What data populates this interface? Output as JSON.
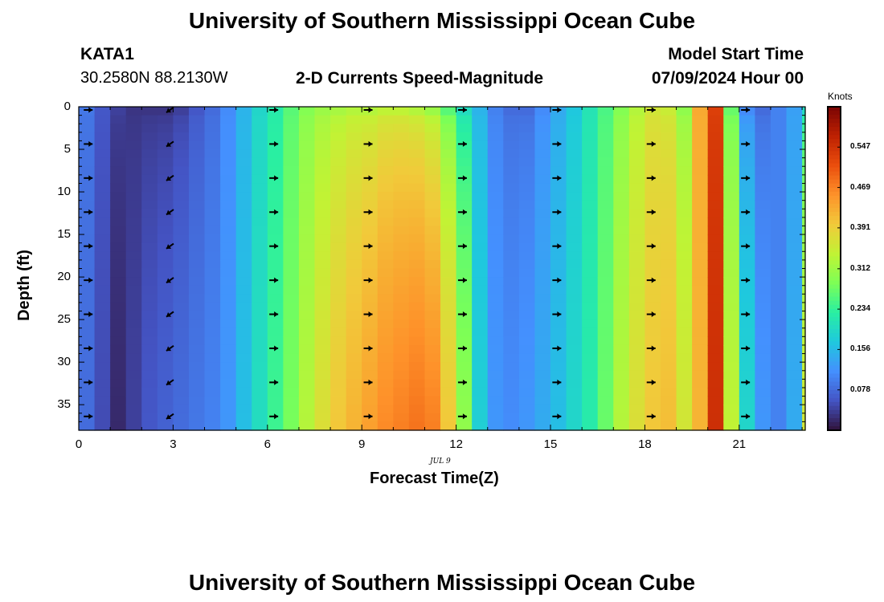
{
  "header": {
    "title": "University of Southern Mississippi Ocean Cube",
    "station_id": "KATA1",
    "station_coords": "30.2580N  88.2130W",
    "chart_title": "2-D Currents Speed-Magnitude",
    "model_label": "Model Start Time",
    "model_time": "07/09/2024 Hour 00"
  },
  "footer": {
    "title": "University of Southern Mississippi Ocean Cube"
  },
  "chart_data": {
    "type": "heatmap",
    "title": "2-D Currents Speed-Magnitude",
    "xlabel": "Forecast Time(Z)",
    "ylabel": "Depth (ft)",
    "date_label": "JUL 9",
    "xlim": [
      0,
      23.1
    ],
    "ylim": [
      0,
      38
    ],
    "x_ticks": [
      "0",
      "3",
      "6",
      "9",
      "12",
      "15",
      "18",
      "21"
    ],
    "y_ticks": [
      "0",
      "5",
      "10",
      "15",
      "20",
      "25",
      "30",
      "35"
    ],
    "colorbar": {
      "unit": "Knots",
      "min": 0.0,
      "max": 0.625,
      "ticks": [
        "0.547",
        "0.469",
        "0.391",
        "0.312",
        "0.234",
        "0.156",
        "0.078"
      ],
      "colors": [
        "#30123b",
        "#4454c4",
        "#4490fe",
        "#1fc8de",
        "#29efa2",
        "#7dff56",
        "#c1f334",
        "#f1ca3a",
        "#fe922a",
        "#ea4e0d",
        "#be2102",
        "#7a0403"
      ]
    },
    "hours": [
      0,
      0.5,
      1,
      1.5,
      2,
      2.5,
      3,
      3.5,
      4,
      4.5,
      5,
      5.5,
      6,
      6.5,
      7,
      7.5,
      8,
      8.5,
      9,
      9.5,
      10,
      10.5,
      11,
      11.5,
      12,
      12.5,
      13,
      13.5,
      14,
      14.5,
      15,
      15.5,
      16,
      16.5,
      17,
      17.5,
      18,
      18.5,
      19,
      19.5,
      20,
      20.5,
      21,
      21.5,
      22,
      22.5,
      23
    ],
    "surface_speed_knots": [
      0.09,
      0.06,
      0.04,
      0.03,
      0.03,
      0.03,
      0.04,
      0.06,
      0.08,
      0.11,
      0.15,
      0.19,
      0.22,
      0.26,
      0.29,
      0.31,
      0.32,
      0.33,
      0.33,
      0.34,
      0.34,
      0.33,
      0.31,
      0.26,
      0.2,
      0.15,
      0.1,
      0.08,
      0.08,
      0.11,
      0.14,
      0.17,
      0.21,
      0.25,
      0.29,
      0.33,
      0.36,
      0.35,
      0.3,
      0.43,
      0.53,
      0.27,
      0.11,
      0.08,
      0.1,
      0.13,
      0.2
    ],
    "deep_speed_knots": [
      0.08,
      0.05,
      0.02,
      0.04,
      0.06,
      0.07,
      0.08,
      0.09,
      0.1,
      0.12,
      0.16,
      0.2,
      0.24,
      0.28,
      0.33,
      0.37,
      0.4,
      0.42,
      0.44,
      0.46,
      0.47,
      0.48,
      0.47,
      0.4,
      0.3,
      0.18,
      0.12,
      0.11,
      0.12,
      0.14,
      0.16,
      0.19,
      0.22,
      0.27,
      0.33,
      0.37,
      0.4,
      0.41,
      0.36,
      0.42,
      0.55,
      0.34,
      0.19,
      0.12,
      0.1,
      0.14,
      0.36
    ],
    "arrow_hours": [
      0.3,
      2.9,
      6.2,
      9.2,
      12.2,
      15.2,
      18.2,
      21.2
    ],
    "arrow_depths_ft": [
      0,
      4,
      8,
      12,
      16,
      20,
      24,
      28,
      32,
      36
    ],
    "arrow_direction_deg": [
      0,
      215,
      0,
      0,
      0,
      0,
      0,
      0
    ]
  }
}
